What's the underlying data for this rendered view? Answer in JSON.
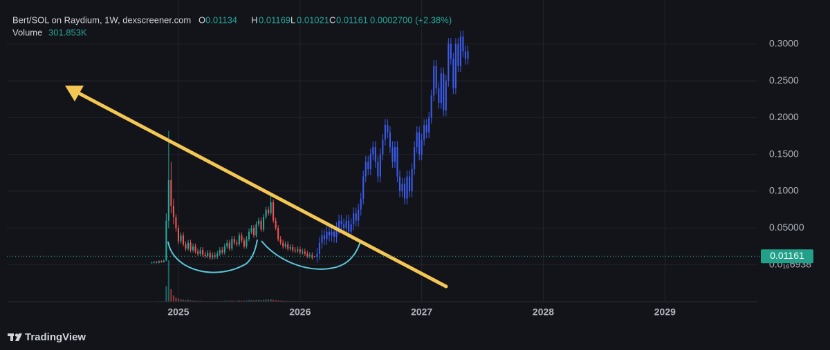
{
  "chart_data": {
    "type": "candlestick",
    "header": {
      "title": "Bert/SOL on Raydium, 1W, dexscreener.com",
      "labels": [
        "O",
        "H",
        "L",
        "C"
      ],
      "open": 0.01134,
      "high": 0.01169,
      "low": 0.01021,
      "close": 0.01161,
      "change": "0.0002700 (+2.38%)",
      "volume_label": "Volume",
      "volume": "301.853K"
    },
    "xlim": [
      2023.59,
      2029.76
    ],
    "xticks": [
      2025,
      2026,
      2027,
      2028,
      2029
    ],
    "ylim": [
      -0.05,
      0.341
    ],
    "yticks": [
      {
        "value": 0.3,
        "label": "0.3000"
      },
      {
        "value": 0.25,
        "label": "0.2500"
      },
      {
        "value": 0.2,
        "label": "0.2000"
      },
      {
        "value": 0.15,
        "label": "0.1500"
      },
      {
        "value": 0.1,
        "label": "0.1000"
      },
      {
        "value": 0.05,
        "label": "0.05000"
      },
      {
        "value": 6.938e-17,
        "label": "0.0₁₆6938"
      }
    ],
    "grid": true,
    "last_price": 0.01161,
    "footer": "TradingView",
    "series": [
      {
        "color_up": "#26a69a",
        "color_down": "#ef5350",
        "x": [
          2024.78,
          2024.8,
          2024.82,
          2024.84,
          2024.86,
          2024.88,
          2024.9,
          2024.92,
          2024.94,
          2024.96,
          2024.98,
          2025.0,
          2025.02,
          2025.04,
          2025.06,
          2025.08,
          2025.1,
          2025.12,
          2025.14,
          2025.16,
          2025.18,
          2025.2,
          2025.22,
          2025.24,
          2025.26,
          2025.28,
          2025.3,
          2025.32,
          2025.34,
          2025.36,
          2025.38,
          2025.4,
          2025.42,
          2025.44,
          2025.46,
          2025.48,
          2025.5,
          2025.52,
          2025.54,
          2025.56,
          2025.58,
          2025.6,
          2025.62,
          2025.64,
          2025.66,
          2025.68,
          2025.7,
          2025.72,
          2025.74,
          2025.76,
          2025.78,
          2025.8,
          2025.82,
          2025.84,
          2025.86,
          2025.88,
          2025.9,
          2025.92,
          2025.94,
          2025.96,
          2025.98,
          2026.0,
          2026.02,
          2026.04,
          2026.06,
          2026.08,
          2026.1,
          2026.12
        ],
        "open": [
          0.003,
          0.003,
          0.004,
          0.003,
          0.005,
          0.004,
          0.006,
          0.06,
          0.115,
          0.08,
          0.065,
          0.05,
          0.032,
          0.04,
          0.028,
          0.022,
          0.03,
          0.02,
          0.025,
          0.018,
          0.015,
          0.02,
          0.014,
          0.012,
          0.016,
          0.01,
          0.013,
          0.011,
          0.015,
          0.02,
          0.017,
          0.025,
          0.03,
          0.022,
          0.035,
          0.03,
          0.028,
          0.04,
          0.033,
          0.025,
          0.035,
          0.045,
          0.05,
          0.04,
          0.055,
          0.06,
          0.048,
          0.065,
          0.075,
          0.07,
          0.085,
          0.06,
          0.05,
          0.035,
          0.03,
          0.025,
          0.028,
          0.022,
          0.024,
          0.02,
          0.019,
          0.021,
          0.017,
          0.018,
          0.015,
          0.012,
          0.013,
          0.01134
        ],
        "high": [
          0.004,
          0.005,
          0.005,
          0.006,
          0.006,
          0.007,
          0.07,
          0.182,
          0.14,
          0.09,
          0.069,
          0.054,
          0.044,
          0.044,
          0.032,
          0.034,
          0.034,
          0.029,
          0.029,
          0.022,
          0.024,
          0.024,
          0.018,
          0.02,
          0.02,
          0.017,
          0.017,
          0.019,
          0.024,
          0.024,
          0.029,
          0.034,
          0.034,
          0.039,
          0.039,
          0.034,
          0.044,
          0.044,
          0.037,
          0.039,
          0.049,
          0.054,
          0.054,
          0.059,
          0.064,
          0.064,
          0.069,
          0.079,
          0.079,
          0.095,
          0.089,
          0.064,
          0.054,
          0.039,
          0.034,
          0.032,
          0.032,
          0.028,
          0.028,
          0.024,
          0.025,
          0.025,
          0.022,
          0.022,
          0.019,
          0.017,
          0.017,
          0.01169
        ],
        "low": [
          0.002,
          0.002,
          0.002,
          0.002,
          0.003,
          0.003,
          0.005,
          0.05,
          0.07,
          0.055,
          0.045,
          0.028,
          0.029,
          0.025,
          0.019,
          0.019,
          0.017,
          0.017,
          0.015,
          0.012,
          0.012,
          0.011,
          0.009,
          0.009,
          0.007,
          0.007,
          0.008,
          0.008,
          0.012,
          0.014,
          0.014,
          0.022,
          0.019,
          0.019,
          0.027,
          0.025,
          0.025,
          0.03,
          0.022,
          0.022,
          0.032,
          0.042,
          0.037,
          0.037,
          0.052,
          0.045,
          0.045,
          0.062,
          0.067,
          0.067,
          0.057,
          0.047,
          0.032,
          0.027,
          0.022,
          0.022,
          0.019,
          0.019,
          0.017,
          0.016,
          0.016,
          0.014,
          0.014,
          0.012,
          0.009,
          0.009,
          0.007,
          0.01021
        ],
        "close": [
          0.003,
          0.004,
          0.003,
          0.005,
          0.004,
          0.006,
          0.06,
          0.115,
          0.08,
          0.065,
          0.05,
          0.032,
          0.04,
          0.028,
          0.022,
          0.03,
          0.02,
          0.025,
          0.018,
          0.015,
          0.02,
          0.014,
          0.012,
          0.016,
          0.01,
          0.013,
          0.011,
          0.015,
          0.02,
          0.017,
          0.025,
          0.03,
          0.022,
          0.035,
          0.03,
          0.028,
          0.04,
          0.033,
          0.025,
          0.035,
          0.045,
          0.05,
          0.04,
          0.055,
          0.06,
          0.048,
          0.065,
          0.075,
          0.07,
          0.085,
          0.06,
          0.05,
          0.035,
          0.03,
          0.025,
          0.028,
          0.022,
          0.024,
          0.02,
          0.019,
          0.021,
          0.017,
          0.018,
          0.015,
          0.012,
          0.013,
          0.01,
          0.01161
        ],
        "volume": [
          200,
          300,
          200,
          400,
          300,
          500,
          15000,
          40000,
          12000,
          6000,
          4000,
          3000,
          2500,
          2000,
          1500,
          1800,
          1200,
          1000,
          900,
          800,
          900,
          700,
          600,
          700,
          600,
          500,
          500,
          600,
          700,
          600,
          900,
          1000,
          800,
          1100,
          900,
          800,
          1200,
          1000,
          900,
          1100,
          1300,
          1500,
          1200,
          1600,
          1800,
          1400,
          1900,
          2200,
          2000,
          2500,
          1800,
          1500,
          1200,
          1000,
          900,
          800,
          700,
          700,
          600,
          600,
          600,
          500,
          500,
          500,
          400,
          400,
          350,
          301.853
        ]
      },
      {
        "color": "#3b5bec",
        "x": [
          2026.14,
          2026.16,
          2026.18,
          2026.2,
          2026.22,
          2026.24,
          2026.26,
          2026.28,
          2026.3,
          2026.32,
          2026.34,
          2026.36,
          2026.38,
          2026.4,
          2026.42,
          2026.44,
          2026.46,
          2026.48,
          2026.5,
          2026.52,
          2026.54,
          2026.56,
          2026.58,
          2026.6,
          2026.62,
          2026.64,
          2026.66,
          2026.68,
          2026.7,
          2026.72,
          2026.74,
          2026.76,
          2026.78,
          2026.8,
          2026.82,
          2026.84,
          2026.86,
          2026.88,
          2026.9,
          2026.92,
          2026.94,
          2026.96,
          2026.98,
          2027.0,
          2027.02,
          2027.04,
          2027.06,
          2027.08,
          2027.1,
          2027.12,
          2027.14,
          2027.16,
          2027.18,
          2027.2,
          2027.22,
          2027.24,
          2027.26,
          2027.28,
          2027.3,
          2027.32,
          2027.34,
          2027.36,
          2027.38
        ],
        "open": [
          0.011,
          0.015,
          0.03,
          0.04,
          0.035,
          0.045,
          0.04,
          0.045,
          0.038,
          0.05,
          0.06,
          0.055,
          0.05,
          0.06,
          0.045,
          0.055,
          0.07,
          0.06,
          0.075,
          0.09,
          0.12,
          0.14,
          0.13,
          0.15,
          0.16,
          0.14,
          0.12,
          0.15,
          0.17,
          0.19,
          0.18,
          0.16,
          0.14,
          0.16,
          0.12,
          0.1,
          0.11,
          0.09,
          0.12,
          0.1,
          0.13,
          0.16,
          0.18,
          0.15,
          0.17,
          0.19,
          0.18,
          0.2,
          0.23,
          0.27,
          0.24,
          0.22,
          0.26,
          0.21,
          0.25,
          0.3,
          0.28,
          0.24,
          0.3,
          0.27,
          0.31,
          0.29,
          0.28
        ],
        "high": [
          0.023,
          0.038,
          0.048,
          0.048,
          0.053,
          0.053,
          0.053,
          0.053,
          0.058,
          0.068,
          0.068,
          0.063,
          0.068,
          0.068,
          0.063,
          0.078,
          0.078,
          0.083,
          0.098,
          0.128,
          0.148,
          0.148,
          0.158,
          0.168,
          0.168,
          0.148,
          0.158,
          0.178,
          0.198,
          0.198,
          0.188,
          0.168,
          0.168,
          0.168,
          0.128,
          0.118,
          0.118,
          0.128,
          0.128,
          0.138,
          0.168,
          0.188,
          0.188,
          0.178,
          0.198,
          0.198,
          0.208,
          0.238,
          0.278,
          0.278,
          0.248,
          0.268,
          0.268,
          0.258,
          0.308,
          0.308,
          0.288,
          0.308,
          0.308,
          0.318,
          0.318,
          0.298,
          0.298
        ],
        "low": [
          0.003,
          0.007,
          0.022,
          0.027,
          0.027,
          0.032,
          0.032,
          0.03,
          0.03,
          0.042,
          0.047,
          0.042,
          0.042,
          0.037,
          0.037,
          0.047,
          0.052,
          0.052,
          0.067,
          0.082,
          0.112,
          0.122,
          0.122,
          0.142,
          0.132,
          0.112,
          0.112,
          0.142,
          0.162,
          0.172,
          0.152,
          0.132,
          0.132,
          0.112,
          0.092,
          0.092,
          0.082,
          0.082,
          0.092,
          0.092,
          0.122,
          0.152,
          0.142,
          0.142,
          0.162,
          0.172,
          0.172,
          0.192,
          0.222,
          0.232,
          0.212,
          0.212,
          0.202,
          0.202,
          0.242,
          0.272,
          0.232,
          0.232,
          0.262,
          0.262,
          0.282,
          0.272,
          0.272
        ],
        "close": [
          0.015,
          0.03,
          0.04,
          0.035,
          0.045,
          0.04,
          0.045,
          0.038,
          0.05,
          0.06,
          0.055,
          0.05,
          0.06,
          0.045,
          0.055,
          0.07,
          0.06,
          0.075,
          0.09,
          0.12,
          0.14,
          0.13,
          0.15,
          0.16,
          0.14,
          0.12,
          0.15,
          0.17,
          0.19,
          0.18,
          0.16,
          0.14,
          0.16,
          0.12,
          0.1,
          0.11,
          0.09,
          0.12,
          0.1,
          0.13,
          0.16,
          0.18,
          0.15,
          0.17,
          0.19,
          0.18,
          0.2,
          0.23,
          0.27,
          0.24,
          0.22,
          0.26,
          0.21,
          0.25,
          0.3,
          0.28,
          0.24,
          0.3,
          0.27,
          0.31,
          0.29,
          0.28,
          0.29
        ]
      }
    ]
  }
}
